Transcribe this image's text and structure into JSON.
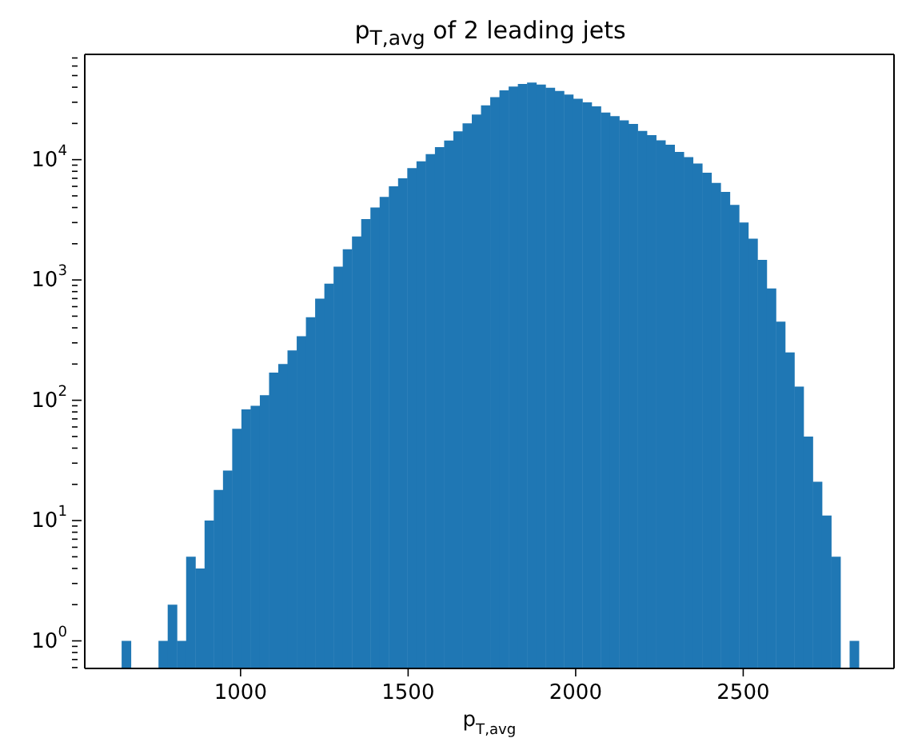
{
  "chart_data": {
    "type": "histogram",
    "title": "p$_{T,avg}$ of 2 leading jets",
    "xlabel": "p$_{T,avg}$",
    "color": "#1f77b4",
    "log": "y",
    "grid": false,
    "bins": [
      645,
      672.5,
      700,
      727.5,
      755,
      782.5,
      810,
      837.5,
      865,
      892.5,
      920,
      947.5,
      975,
      1002.5,
      1030,
      1057.5,
      1085,
      1112.5,
      1140,
      1167.5,
      1195,
      1222.5,
      1250,
      1277.5,
      1305,
      1332.5,
      1360,
      1387.5,
      1415,
      1442.5,
      1470,
      1497.5,
      1525,
      1552.5,
      1580,
      1607.5,
      1635,
      1662.5,
      1690,
      1717.5,
      1745,
      1772.5,
      1800,
      1827.5,
      1855,
      1882.5,
      1910,
      1937.5,
      1965,
      1992.5,
      2020,
      2047.5,
      2075,
      2102.5,
      2130,
      2157.5,
      2185,
      2212.5,
      2240,
      2267.5,
      2295,
      2322.5,
      2350,
      2377.5,
      2405,
      2432.5,
      2460,
      2487.5,
      2515,
      2542.5,
      2570,
      2597.5,
      2625,
      2652.5,
      2680,
      2707.5,
      2735,
      2762.5,
      2790,
      2817.5,
      2845
    ],
    "values": [
      1,
      null,
      null,
      null,
      1,
      2,
      1,
      5,
      4,
      10,
      18,
      26,
      58,
      84,
      90,
      110,
      170,
      200,
      260,
      340,
      490,
      700,
      930,
      1290,
      1800,
      2300,
      3200,
      4000,
      4900,
      6000,
      7000,
      8500,
      9700,
      11100,
      12700,
      14400,
      17200,
      20000,
      23700,
      28300,
      33100,
      37700,
      40500,
      42500,
      43800,
      42100,
      39600,
      37300,
      34800,
      32100,
      30000,
      27700,
      24600,
      23000,
      21200,
      19800,
      17300,
      16000,
      14500,
      13300,
      11600,
      10500,
      9300,
      7800,
      6400,
      5400,
      4200,
      3000,
      2200,
      1470,
      850,
      450,
      250,
      130,
      50,
      21,
      11,
      5,
      null,
      1
    ],
    "xlim": [
      535,
      2950
    ],
    "xticks": [
      1000,
      1500,
      2000,
      2500
    ],
    "ylim": [
      0.59,
      75000
    ],
    "yticks": [
      {
        "value": 0.6,
        "label": null
      },
      {
        "value": 0.7,
        "label": null
      },
      {
        "value": 0.8,
        "label": null
      },
      {
        "value": 0.9,
        "label": null
      },
      {
        "value": 1,
        "label": "10$^{0}$"
      },
      {
        "value": 2,
        "label": null
      },
      {
        "value": 3,
        "label": null
      },
      {
        "value": 4,
        "label": null
      },
      {
        "value": 5,
        "label": null
      },
      {
        "value": 6,
        "label": null
      },
      {
        "value": 7,
        "label": null
      },
      {
        "value": 8,
        "label": null
      },
      {
        "value": 9,
        "label": null
      },
      {
        "value": 10,
        "label": "10$^{1}$"
      },
      {
        "value": 20,
        "label": null
      },
      {
        "value": 30,
        "label": null
      },
      {
        "value": 40,
        "label": null
      },
      {
        "value": 50,
        "label": null
      },
      {
        "value": 60,
        "label": null
      },
      {
        "value": 70,
        "label": null
      },
      {
        "value": 80,
        "label": null
      },
      {
        "value": 90,
        "label": null
      },
      {
        "value": 100,
        "label": "10$^{2}$"
      },
      {
        "value": 200,
        "label": null
      },
      {
        "value": 300,
        "label": null
      },
      {
        "value": 400,
        "label": null
      },
      {
        "value": 500,
        "label": null
      },
      {
        "value": 600,
        "label": null
      },
      {
        "value": 700,
        "label": null
      },
      {
        "value": 800,
        "label": null
      },
      {
        "value": 900,
        "label": null
      },
      {
        "value": 1000,
        "label": "10$^{3}$"
      },
      {
        "value": 2000,
        "label": null
      },
      {
        "value": 3000,
        "label": null
      },
      {
        "value": 4000,
        "label": null
      },
      {
        "value": 5000,
        "label": null
      },
      {
        "value": 6000,
        "label": null
      },
      {
        "value": 7000,
        "label": null
      },
      {
        "value": 8000,
        "label": null
      },
      {
        "value": 9000,
        "label": null
      },
      {
        "value": 10000,
        "label": "10$^{4}$"
      },
      {
        "value": 20000,
        "label": null
      },
      {
        "value": 30000,
        "label": null
      },
      {
        "value": 40000,
        "label": null
      },
      {
        "value": 50000,
        "label": null
      },
      {
        "value": 60000,
        "label": null
      },
      {
        "value": 70000,
        "label": null
      }
    ]
  }
}
